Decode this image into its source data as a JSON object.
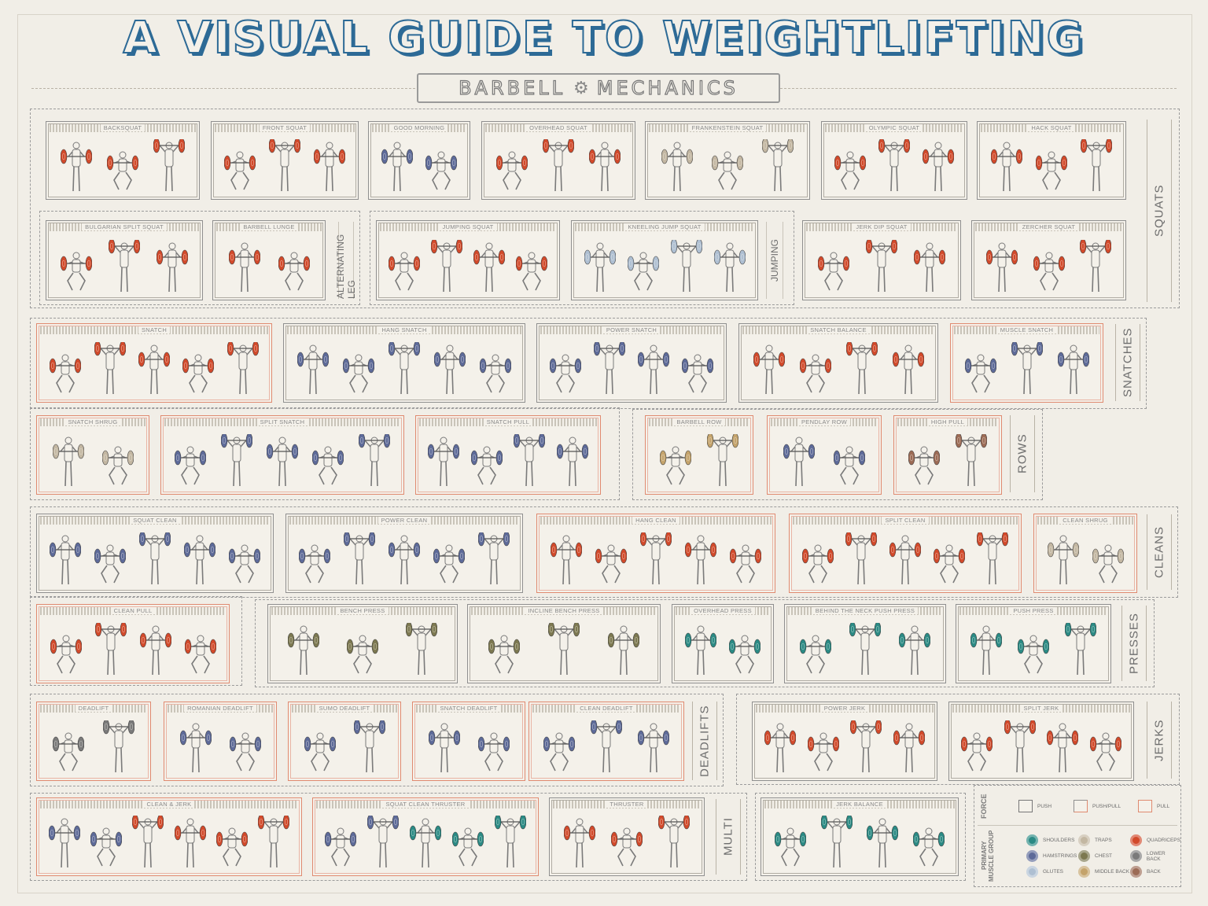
{
  "title": "A VISUAL GUIDE TO WEIGHTLIFTING",
  "subtitle": {
    "left": "BARBELL",
    "right": "MECHANICS"
  },
  "colors": {
    "shoulders": "#2a8a84",
    "traps": "#c3b7a2",
    "quadriceps": "#d2492a",
    "hamstrings": "#5d6a99",
    "chest": "#7c7850",
    "lower_back": "#7a7a7a",
    "glutes": "#aebfd2",
    "middle_back": "#c4a36b",
    "back": "#9c6b55",
    "push": "#8f8f8f",
    "pull": "#e08a70"
  },
  "sections": {
    "squats": "SQUATS",
    "snatches": "SNATCHES",
    "rows": "ROWS",
    "cleans": "CLEANS",
    "presses": "PRESSES",
    "deadlifts": "DEADLIFTS",
    "jerks": "JERKS",
    "multi": "MULTI",
    "alternating_leg": "ALTERNATING LEG",
    "jumping": "JUMPING"
  },
  "exercises": [
    {
      "label": "BACKSQUAT",
      "force": "push",
      "muscles": [
        "quadriceps",
        "quadriceps",
        "quadriceps"
      ]
    },
    {
      "label": "FRONT SQUAT",
      "force": "push",
      "muscles": [
        "quadriceps",
        "quadriceps",
        "quadriceps"
      ]
    },
    {
      "label": "GOOD MORNING",
      "force": "push",
      "muscles": [
        "hamstrings",
        "hamstrings"
      ]
    },
    {
      "label": "OVERHEAD SQUAT",
      "force": "push",
      "muscles": [
        "quadriceps",
        "quadriceps",
        "quadriceps"
      ]
    },
    {
      "label": "FRANKENSTEIN SQUAT",
      "force": "push",
      "muscles": [
        "traps",
        "traps",
        "traps"
      ]
    },
    {
      "label": "OLYMPIC SQUAT",
      "force": "push",
      "muscles": [
        "quadriceps",
        "quadriceps",
        "quadriceps"
      ]
    },
    {
      "label": "HACK SQUAT",
      "force": "push",
      "muscles": [
        "quadriceps",
        "quadriceps",
        "quadriceps"
      ]
    },
    {
      "label": "BULGARIAN SPLIT SQUAT",
      "force": "push",
      "muscles": [
        "quadriceps",
        "quadriceps",
        "quadriceps"
      ]
    },
    {
      "label": "BARBELL LUNGE",
      "force": "push",
      "muscles": [
        "quadriceps",
        "quadriceps"
      ]
    },
    {
      "label": "JUMPING SQUAT",
      "force": "push",
      "muscles": [
        "quadriceps",
        "quadriceps",
        "quadriceps",
        "quadriceps"
      ]
    },
    {
      "label": "KNEELING JUMP SQUAT",
      "force": "push",
      "muscles": [
        "glutes",
        "glutes",
        "glutes",
        "glutes"
      ]
    },
    {
      "label": "JERK DIP SQUAT",
      "force": "push",
      "muscles": [
        "quadriceps",
        "quadriceps",
        "quadriceps"
      ]
    },
    {
      "label": "ZERCHER SQUAT",
      "force": "push",
      "muscles": [
        "quadriceps",
        "quadriceps",
        "quadriceps"
      ]
    },
    {
      "label": "SNATCH",
      "force": "pull",
      "muscles": [
        "quadriceps",
        "quadriceps",
        "quadriceps",
        "quadriceps",
        "quadriceps"
      ]
    },
    {
      "label": "HANG SNATCH",
      "force": "push",
      "muscles": [
        "hamstrings",
        "hamstrings",
        "hamstrings",
        "hamstrings",
        "hamstrings"
      ]
    },
    {
      "label": "POWER SNATCH",
      "force": "push",
      "muscles": [
        "hamstrings",
        "hamstrings",
        "hamstrings",
        "hamstrings"
      ]
    },
    {
      "label": "SNATCH BALANCE",
      "force": "push",
      "muscles": [
        "quadriceps",
        "quadriceps",
        "quadriceps",
        "quadriceps"
      ]
    },
    {
      "label": "MUSCLE SNATCH",
      "force": "pull",
      "muscles": [
        "hamstrings",
        "hamstrings",
        "hamstrings"
      ]
    },
    {
      "label": "SNATCH SHRUG",
      "force": "pull",
      "muscles": [
        "traps",
        "traps"
      ]
    },
    {
      "label": "SPLIT SNATCH",
      "force": "pull",
      "muscles": [
        "hamstrings",
        "hamstrings",
        "hamstrings",
        "hamstrings",
        "hamstrings"
      ]
    },
    {
      "label": "SNATCH PULL",
      "force": "pull",
      "muscles": [
        "hamstrings",
        "hamstrings",
        "hamstrings",
        "hamstrings"
      ]
    },
    {
      "label": "BARBELL ROW",
      "force": "pull",
      "muscles": [
        "middle_back",
        "middle_back"
      ]
    },
    {
      "label": "PENDLAY ROW",
      "force": "pull",
      "muscles": [
        "hamstrings",
        "hamstrings"
      ]
    },
    {
      "label": "HIGH PULL",
      "force": "pull",
      "muscles": [
        "back",
        "back"
      ]
    },
    {
      "label": "SQUAT CLEAN",
      "force": "push",
      "muscles": [
        "hamstrings",
        "hamstrings",
        "hamstrings",
        "hamstrings",
        "hamstrings"
      ]
    },
    {
      "label": "POWER CLEAN",
      "force": "push",
      "muscles": [
        "hamstrings",
        "hamstrings",
        "hamstrings",
        "hamstrings",
        "hamstrings"
      ]
    },
    {
      "label": "HANG CLEAN",
      "force": "pull",
      "muscles": [
        "quadriceps",
        "quadriceps",
        "quadriceps",
        "quadriceps",
        "quadriceps"
      ]
    },
    {
      "label": "SPLIT CLEAN",
      "force": "pull",
      "muscles": [
        "quadriceps",
        "quadriceps",
        "quadriceps",
        "quadriceps",
        "quadriceps"
      ]
    },
    {
      "label": "CLEAN SHRUG",
      "force": "pull",
      "muscles": [
        "traps",
        "traps"
      ]
    },
    {
      "label": "CLEAN PULL",
      "force": "pull",
      "muscles": [
        "quadriceps",
        "quadriceps",
        "quadriceps",
        "quadriceps"
      ]
    },
    {
      "label": "BENCH PRESS",
      "force": "push",
      "muscles": [
        "chest",
        "chest",
        "chest"
      ]
    },
    {
      "label": "INCLINE BENCH PRESS",
      "force": "push",
      "muscles": [
        "chest",
        "chest",
        "chest"
      ]
    },
    {
      "label": "OVERHEAD PRESS",
      "force": "push",
      "muscles": [
        "shoulders",
        "shoulders"
      ]
    },
    {
      "label": "BEHIND THE NECK PUSH PRESS",
      "force": "push",
      "muscles": [
        "shoulders",
        "shoulders",
        "shoulders"
      ]
    },
    {
      "label": "PUSH PRESS",
      "force": "push",
      "muscles": [
        "shoulders",
        "shoulders",
        "shoulders"
      ]
    },
    {
      "label": "DEADLIFT",
      "force": "pull",
      "muscles": [
        "lower_back",
        "lower_back"
      ]
    },
    {
      "label": "ROMANIAN DEADLIFT",
      "force": "pull",
      "muscles": [
        "hamstrings",
        "hamstrings"
      ]
    },
    {
      "label": "SUMO DEADLIFT",
      "force": "pull",
      "muscles": [
        "hamstrings",
        "hamstrings"
      ]
    },
    {
      "label": "SNATCH DEADLIFT",
      "force": "pull",
      "muscles": [
        "hamstrings",
        "hamstrings"
      ]
    },
    {
      "label": "CLEAN DEADLIFT",
      "force": "pull",
      "muscles": [
        "hamstrings",
        "hamstrings",
        "hamstrings"
      ]
    },
    {
      "label": "POWER JERK",
      "force": "push",
      "muscles": [
        "quadriceps",
        "quadriceps",
        "quadriceps",
        "quadriceps"
      ]
    },
    {
      "label": "SPLIT JERK",
      "force": "push",
      "muscles": [
        "quadriceps",
        "quadriceps",
        "quadriceps",
        "quadriceps"
      ]
    },
    {
      "label": "CLEAN & JERK",
      "force": "pull",
      "muscles": [
        "hamstrings",
        "hamstrings",
        "quadriceps",
        "quadriceps",
        "quadriceps",
        "quadriceps"
      ]
    },
    {
      "label": "SQUAT CLEAN THRUSTER",
      "force": "pull",
      "muscles": [
        "hamstrings",
        "hamstrings",
        "shoulders",
        "shoulders",
        "shoulders"
      ]
    },
    {
      "label": "THRUSTER",
      "force": "push",
      "muscles": [
        "quadriceps",
        "quadriceps",
        "quadriceps"
      ]
    },
    {
      "label": "JERK BALANCE",
      "force": "push",
      "muscles": [
        "shoulders",
        "shoulders",
        "shoulders",
        "shoulders"
      ]
    }
  ],
  "legend": {
    "force_title": "FORCE",
    "force": [
      {
        "label": "PUSH",
        "key": "push"
      },
      {
        "label": "PUSH/PULL",
        "key": "pushpull"
      },
      {
        "label": "PULL",
        "key": "pull"
      }
    ],
    "muscle_title": "PRIMARY MUSCLE GROUP",
    "muscles": [
      {
        "label": "SHOULDERS",
        "key": "shoulders"
      },
      {
        "label": "TRAPS",
        "key": "traps"
      },
      {
        "label": "QUADRICEPS",
        "key": "quadriceps"
      },
      {
        "label": "HAMSTRINGS",
        "key": "hamstrings"
      },
      {
        "label": "CHEST",
        "key": "chest"
      },
      {
        "label": "LOWER BACK",
        "key": "lower_back"
      },
      {
        "label": "GLUTES",
        "key": "glutes"
      },
      {
        "label": "MIDDLE BACK",
        "key": "middle_back"
      },
      {
        "label": "BACK",
        "key": "back"
      }
    ]
  }
}
